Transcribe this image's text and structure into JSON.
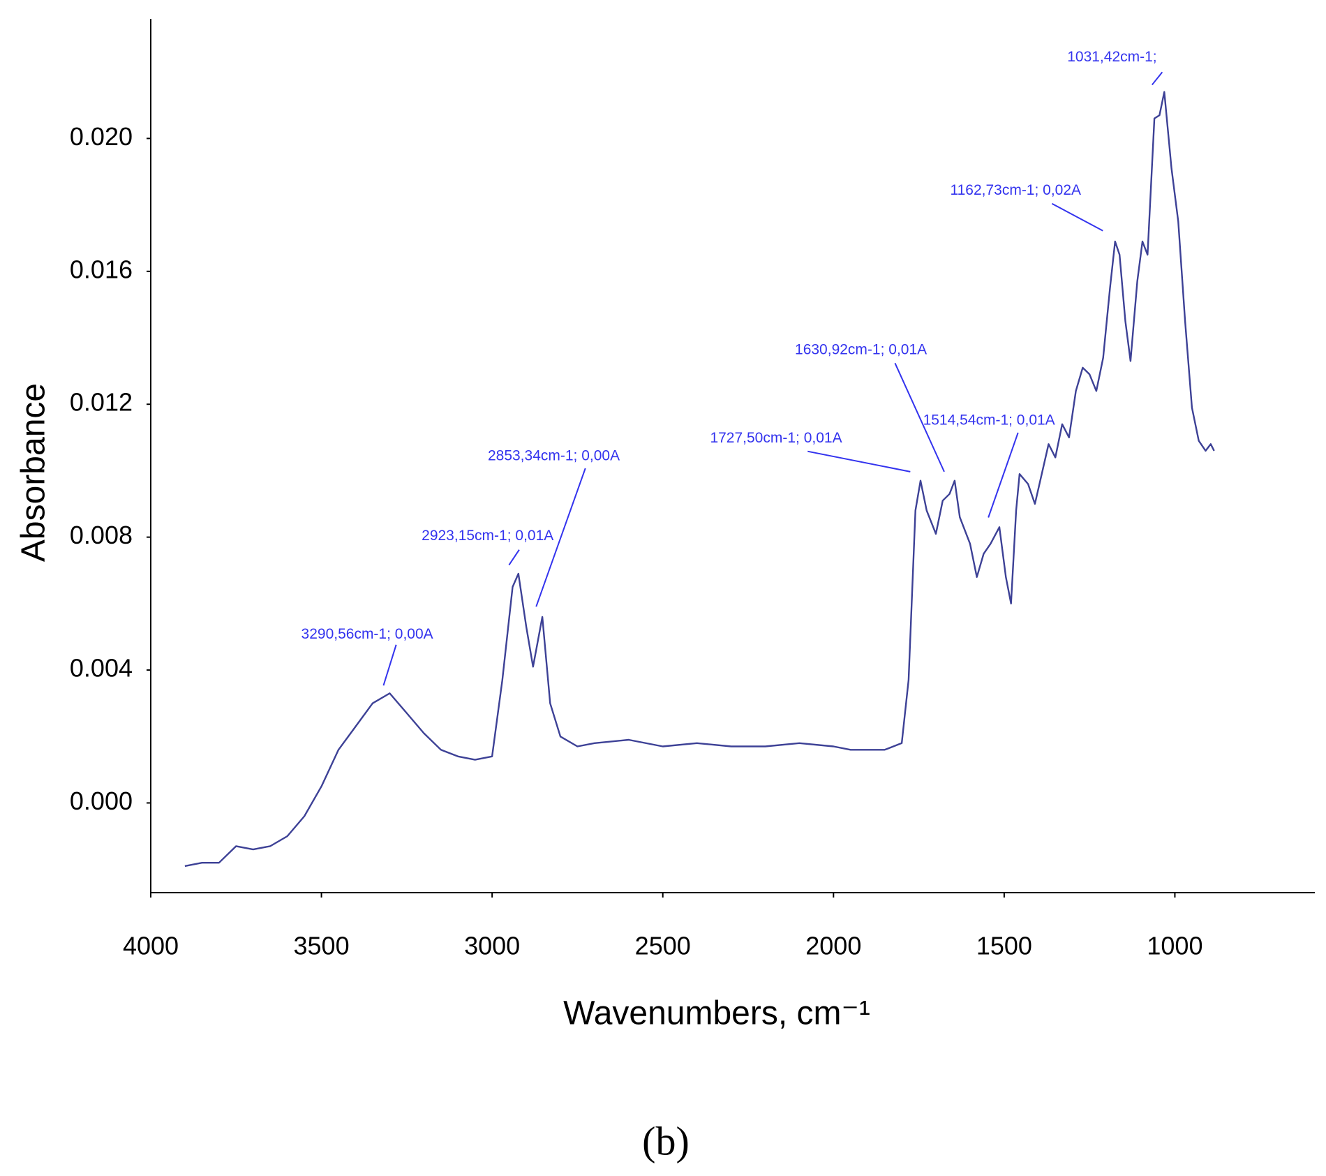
{
  "chart_data": {
    "type": "line",
    "x_label": "Wavenumbers, cm⁻¹",
    "y_label": "Absorbance",
    "caption": "(b)",
    "color": "#3d4196",
    "annotation_color": "#3333ee",
    "x": [
      3900,
      3850,
      3800,
      3750,
      3700,
      3650,
      3600,
      3550,
      3500,
      3450,
      3400,
      3350,
      3300,
      3250,
      3200,
      3150,
      3100,
      3050,
      3000,
      2970,
      2940,
      2923,
      2900,
      2880,
      2853,
      2830,
      2800,
      2750,
      2700,
      2600,
      2500,
      2400,
      2300,
      2200,
      2100,
      2000,
      1950,
      1900,
      1850,
      1800,
      1780,
      1760,
      1745,
      1727,
      1700,
      1680,
      1660,
      1645,
      1630,
      1600,
      1580,
      1560,
      1540,
      1514,
      1495,
      1480,
      1465,
      1455,
      1430,
      1410,
      1390,
      1370,
      1350,
      1330,
      1310,
      1290,
      1270,
      1250,
      1230,
      1210,
      1190,
      1175,
      1162,
      1145,
      1130,
      1110,
      1095,
      1080,
      1060,
      1045,
      1031,
      1010,
      990,
      970,
      950,
      930,
      910,
      895,
      885
    ],
    "values": [
      -0.0019,
      -0.0018,
      -0.0018,
      -0.0013,
      -0.0014,
      -0.0013,
      -0.001,
      -0.0004,
      0.0005,
      0.0016,
      0.0023,
      0.003,
      0.0033,
      0.0027,
      0.0021,
      0.0016,
      0.0014,
      0.0013,
      0.0014,
      0.0037,
      0.0065,
      0.0069,
      0.0053,
      0.0041,
      0.0056,
      0.003,
      0.002,
      0.0017,
      0.0018,
      0.0019,
      0.0017,
      0.0018,
      0.0017,
      0.0017,
      0.0018,
      0.0017,
      0.0016,
      0.0016,
      0.0016,
      0.0018,
      0.0037,
      0.0088,
      0.0097,
      0.0088,
      0.0081,
      0.0091,
      0.0093,
      0.0097,
      0.0086,
      0.0078,
      0.0068,
      0.0075,
      0.0078,
      0.0083,
      0.0068,
      0.006,
      0.0088,
      0.0099,
      0.0096,
      0.009,
      0.0099,
      0.0108,
      0.0104,
      0.0114,
      0.011,
      0.0124,
      0.0131,
      0.0129,
      0.0124,
      0.0134,
      0.0155,
      0.0169,
      0.0165,
      0.0145,
      0.0133,
      0.0157,
      0.0169,
      0.0165,
      0.0206,
      0.0207,
      0.0214,
      0.0191,
      0.0175,
      0.0145,
      0.0119,
      0.0109,
      0.0106,
      0.0108,
      0.0106
    ],
    "xlim": [
      4000,
      590
    ],
    "xticks": [
      4000,
      3500,
      3000,
      2500,
      2000,
      1500,
      1000
    ],
    "ylim": [
      -0.0027,
      0.0236
    ],
    "yticks": [
      {
        "value": 0,
        "label": "0.000"
      },
      {
        "value": 0.004,
        "label": "0.004"
      },
      {
        "value": 0.008,
        "label": "0.008"
      },
      {
        "value": 0.012,
        "label": "0.012"
      },
      {
        "value": 0.016,
        "label": "0.016"
      },
      {
        "value": 0.02,
        "label": "0.020"
      }
    ],
    "grid": false,
    "annotations": [
      "3290,56cm-1; 0,00A",
      "2923,15cm-1; 0,01A",
      "2853,34cm-1; 0,00A",
      "1727,50cm-1; 0,01A",
      "1630,92cm-1; 0,01A",
      "1514,54cm-1; 0,01A",
      "1162,73cm-1; 0,02A",
      "1031,42cm-1;"
    ]
  }
}
